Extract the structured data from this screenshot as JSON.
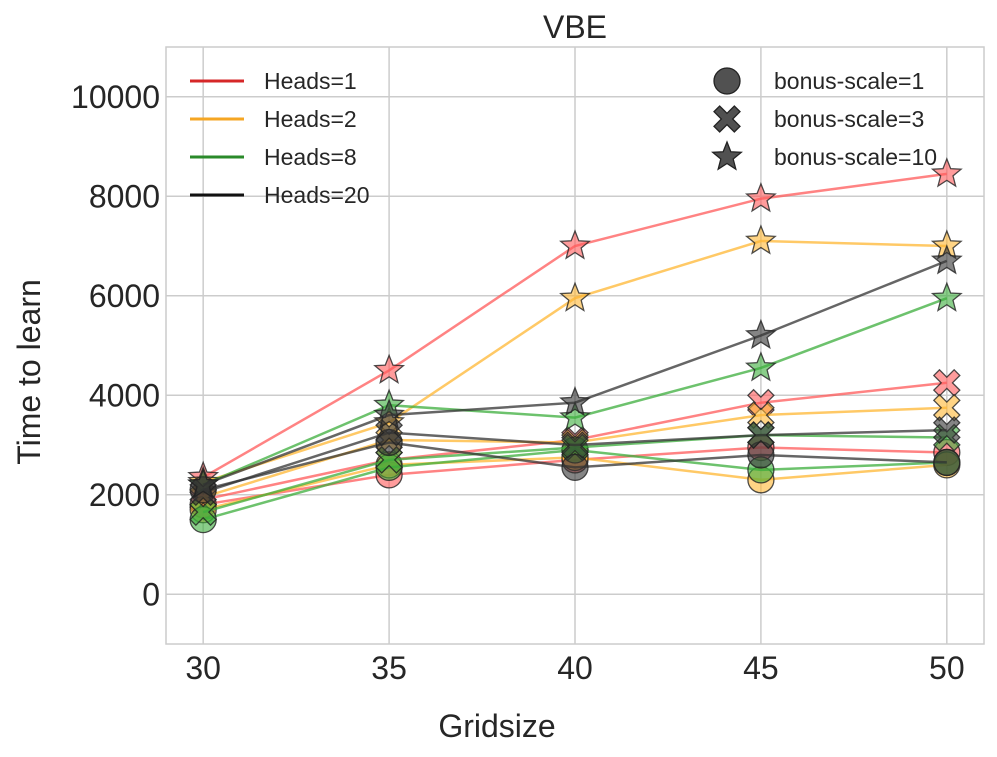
{
  "chart_data": {
    "type": "line",
    "title": "VBE",
    "xlabel": "Gridsize",
    "ylabel": "Time to learn",
    "x": [
      30,
      35,
      40,
      45,
      50
    ],
    "xlim": [
      29,
      51
    ],
    "ylim": [
      -1000,
      11000
    ],
    "xticks": [
      30,
      35,
      40,
      45,
      50
    ],
    "yticks": [
      0,
      2000,
      4000,
      6000,
      8000,
      10000
    ],
    "xtick_labels": [
      "30",
      "35",
      "40",
      "45",
      "50"
    ],
    "ytick_labels": [
      "0",
      "2000",
      "4000",
      "6000",
      "8000",
      "10000"
    ],
    "grid": true,
    "heads_legend": {
      "position": "top-left",
      "entries": [
        {
          "label": "Heads=1",
          "color": "#d62728"
        },
        {
          "label": "Heads=2",
          "color": "#f5a623"
        },
        {
          "label": "Heads=8",
          "color": "#2a8a2a"
        },
        {
          "label": "Heads=20",
          "color": "#111111"
        }
      ]
    },
    "marker_legend": {
      "position": "top-right",
      "entries": [
        {
          "label": "bonus-scale=1",
          "marker": "circle"
        },
        {
          "label": "bonus-scale=3",
          "marker": "x"
        },
        {
          "label": "bonus-scale=10",
          "marker": "star"
        }
      ]
    },
    "series": [
      {
        "heads": 1,
        "bonus_scale": 1,
        "color": "#ff5a5a",
        "marker": "circle",
        "values": [
          1800,
          2400,
          2700,
          2950,
          2850
        ]
      },
      {
        "heads": 1,
        "bonus_scale": 3,
        "color": "#ff5a5a",
        "marker": "x",
        "values": [
          1900,
          2700,
          3100,
          3850,
          4250
        ]
      },
      {
        "heads": 1,
        "bonus_scale": 10,
        "color": "#ff5a5a",
        "marker": "star",
        "values": [
          2350,
          4500,
          7000,
          7950,
          8450
        ]
      },
      {
        "heads": 2,
        "bonus_scale": 1,
        "color": "#ffb733",
        "marker": "circle",
        "values": [
          1700,
          2600,
          2750,
          2300,
          2600
        ]
      },
      {
        "heads": 2,
        "bonus_scale": 3,
        "color": "#ffb733",
        "marker": "x",
        "values": [
          1950,
          3100,
          3050,
          3600,
          3750
        ]
      },
      {
        "heads": 2,
        "bonus_scale": 10,
        "color": "#ffb733",
        "marker": "star",
        "values": [
          2250,
          3450,
          5950,
          7100,
          7000
        ]
      },
      {
        "heads": 8,
        "bonus_scale": 1,
        "color": "#3cae3c",
        "marker": "circle",
        "values": [
          1500,
          2550,
          2900,
          2500,
          2650
        ]
      },
      {
        "heads": 8,
        "bonus_scale": 3,
        "color": "#3cae3c",
        "marker": "x",
        "values": [
          1650,
          2700,
          2950,
          3200,
          3150
        ]
      },
      {
        "heads": 8,
        "bonus_scale": 10,
        "color": "#3cae3c",
        "marker": "star",
        "values": [
          2200,
          3800,
          3550,
          4550,
          5950
        ]
      },
      {
        "heads": 20,
        "bonus_scale": 1,
        "color": "#333333",
        "marker": "circle",
        "values": [
          2100,
          3050,
          2550,
          2800,
          2650
        ]
      },
      {
        "heads": 20,
        "bonus_scale": 3,
        "color": "#333333",
        "marker": "x",
        "values": [
          2050,
          3250,
          3000,
          3200,
          3300
        ]
      },
      {
        "heads": 20,
        "bonus_scale": 10,
        "color": "#333333",
        "marker": "star",
        "values": [
          2200,
          3600,
          3850,
          5200,
          6700
        ]
      }
    ]
  }
}
